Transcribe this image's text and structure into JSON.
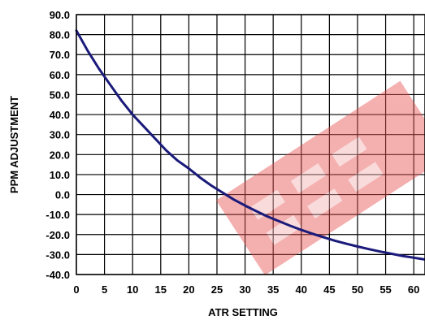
{
  "chart_data": {
    "type": "line",
    "xlabel": "ATR SETTING",
    "ylabel": "PPM ADJUSTMENT",
    "xlim": [
      0,
      62
    ],
    "ylim": [
      -40,
      90
    ],
    "x_ticks": [
      0,
      5,
      10,
      15,
      20,
      25,
      30,
      35,
      40,
      45,
      50,
      55,
      60
    ],
    "y_ticks": [
      "90.0",
      "80.0",
      "70.0",
      "60.0",
      "50.0",
      "40.0",
      "30.0",
      "20.0",
      "10.0",
      "0.0",
      "-10.0",
      "-20.0",
      "-30.0",
      "-40.0"
    ],
    "grid": true,
    "series": [
      {
        "color": "#1a1a7a",
        "x": [
          0,
          2,
          4,
          6,
          8,
          10,
          12,
          14,
          16,
          18,
          20,
          22,
          24,
          26,
          28,
          30,
          32,
          34,
          36,
          38,
          40,
          42,
          44,
          46,
          48,
          50,
          52,
          54,
          56,
          58,
          60,
          62
        ],
        "y": [
          82,
          72,
          63,
          55,
          47,
          40,
          34,
          28,
          22,
          17,
          13,
          8.5,
          4.5,
          1,
          -2.5,
          -5.5,
          -8.3,
          -11,
          -13.3,
          -15.6,
          -17.7,
          -19.6,
          -21.4,
          -23.1,
          -24.6,
          -26,
          -27.3,
          -28.5,
          -29.6,
          -30.7,
          -31.6,
          -32.5
        ]
      }
    ],
    "watermark": {
      "color": "#e85050",
      "opacity": 0.45
    }
  }
}
